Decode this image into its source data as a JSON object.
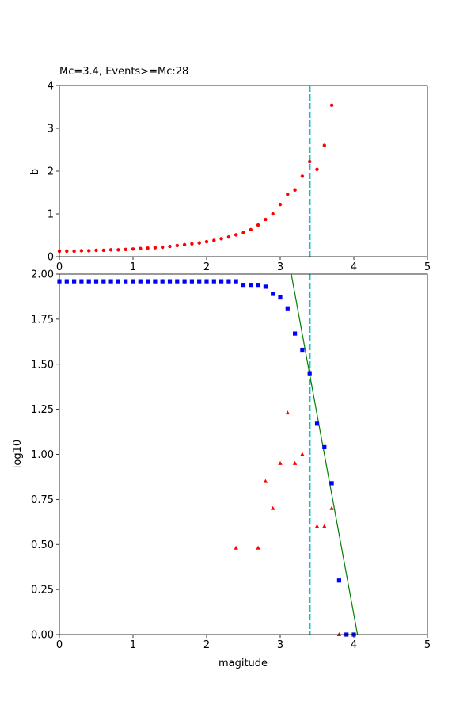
{
  "chart_data": [
    {
      "type": "scatter",
      "title": "Mc=3.4, Events>=Mc:28",
      "xlabel": "",
      "ylabel": "b",
      "xlim": [
        0,
        5
      ],
      "ylim": [
        0,
        4
      ],
      "xticks": [
        "0",
        "1",
        "2",
        "3",
        "4",
        "5"
      ],
      "yticks": [
        "0",
        "1",
        "2",
        "3",
        "4"
      ],
      "vline": {
        "x": 3.4,
        "color": "#17becf",
        "style": "dashed"
      },
      "series": [
        {
          "marker": "circle",
          "color": "#ff0000",
          "x": [
            0.0,
            0.1,
            0.2,
            0.3,
            0.4,
            0.5,
            0.6,
            0.7,
            0.8,
            0.9,
            1.0,
            1.1,
            1.2,
            1.3,
            1.4,
            1.5,
            1.6,
            1.7,
            1.8,
            1.9,
            2.0,
            2.1,
            2.2,
            2.3,
            2.4,
            2.5,
            2.6,
            2.7,
            2.8,
            2.9,
            3.0,
            3.1,
            3.2,
            3.3,
            3.4,
            3.5,
            3.6,
            3.7
          ],
          "y": [
            0.13,
            0.13,
            0.13,
            0.14,
            0.14,
            0.15,
            0.15,
            0.16,
            0.16,
            0.17,
            0.18,
            0.19,
            0.2,
            0.21,
            0.22,
            0.24,
            0.26,
            0.28,
            0.3,
            0.32,
            0.35,
            0.38,
            0.42,
            0.46,
            0.51,
            0.56,
            0.63,
            0.74,
            0.87,
            1.0,
            1.22,
            1.46,
            1.56,
            1.88,
            2.22,
            2.04,
            2.6,
            3.54
          ]
        }
      ]
    },
    {
      "type": "scatter",
      "title": "",
      "xlabel": "magitude",
      "ylabel": "log10",
      "xlim": [
        0,
        5
      ],
      "ylim": [
        0,
        2
      ],
      "xticks": [
        "0",
        "1",
        "2",
        "3",
        "4",
        "5"
      ],
      "yticks": [
        "0.00",
        "0.25",
        "0.50",
        "0.75",
        "1.00",
        "1.25",
        "1.50",
        "1.75",
        "2.00"
      ],
      "vline": {
        "x": 3.4,
        "color": "#17becf",
        "style": "dashed"
      },
      "fit_line": {
        "x": [
          3.15,
          4.05
        ],
        "y": [
          2.0,
          0.0
        ],
        "color": "#008000"
      },
      "series": [
        {
          "marker": "square",
          "color": "#0000ff",
          "x": [
            0.0,
            0.1,
            0.2,
            0.3,
            0.4,
            0.5,
            0.6,
            0.7,
            0.8,
            0.9,
            1.0,
            1.1,
            1.2,
            1.3,
            1.4,
            1.5,
            1.6,
            1.7,
            1.8,
            1.9,
            2.0,
            2.1,
            2.2,
            2.3,
            2.4,
            2.5,
            2.6,
            2.7,
            2.8,
            2.9,
            3.0,
            3.1,
            3.2,
            3.3,
            3.4,
            3.5,
            3.6,
            3.7,
            3.8,
            3.9,
            4.0
          ],
          "y": [
            1.96,
            1.96,
            1.96,
            1.96,
            1.96,
            1.96,
            1.96,
            1.96,
            1.96,
            1.96,
            1.96,
            1.96,
            1.96,
            1.96,
            1.96,
            1.96,
            1.96,
            1.96,
            1.96,
            1.96,
            1.96,
            1.96,
            1.96,
            1.96,
            1.96,
            1.94,
            1.94,
            1.94,
            1.93,
            1.89,
            1.87,
            1.81,
            1.67,
            1.58,
            1.45,
            1.17,
            1.04,
            0.84,
            0.3,
            0.0,
            0.0
          ]
        },
        {
          "marker": "triangle",
          "color": "#ff0000",
          "x": [
            2.4,
            2.7,
            2.8,
            2.9,
            3.0,
            3.1,
            3.2,
            3.3,
            3.5,
            3.6,
            3.7,
            3.8
          ],
          "y": [
            0.48,
            0.48,
            0.85,
            0.7,
            0.95,
            1.23,
            0.95,
            1.0,
            0.6,
            0.6,
            0.7,
            0.0
          ]
        }
      ]
    }
  ]
}
